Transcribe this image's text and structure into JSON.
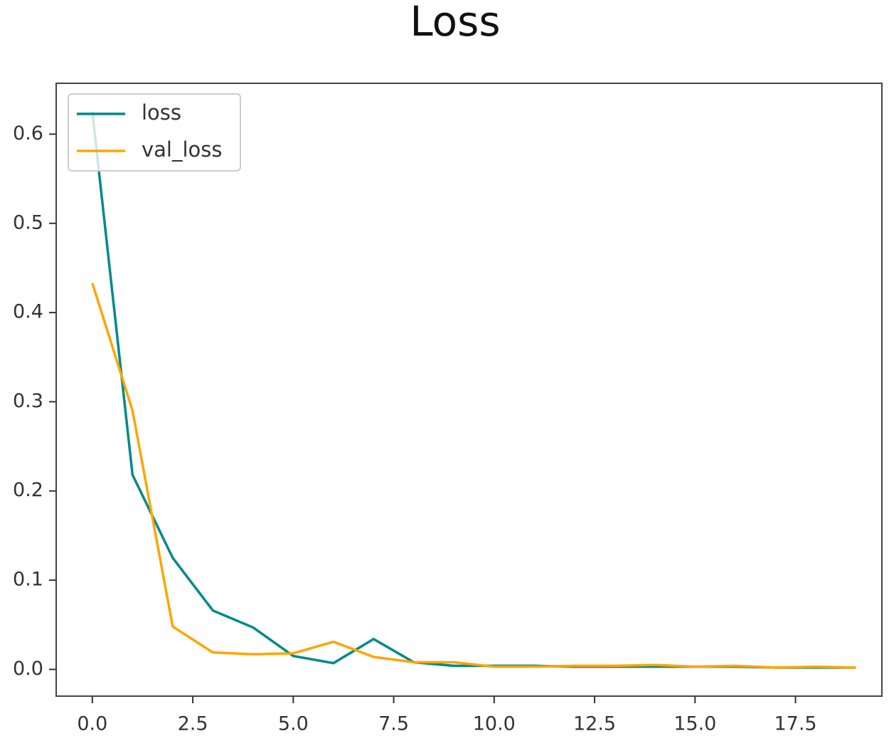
{
  "chart_data": {
    "type": "line",
    "title": "Loss",
    "x": [
      0,
      1,
      2,
      3,
      4,
      5,
      6,
      7,
      8,
      9,
      10,
      11,
      12,
      13,
      14,
      15,
      16,
      17,
      18,
      19
    ],
    "series": [
      {
        "name": "loss",
        "color": "#00898a",
        "values": [
          0.625,
          0.218,
          0.125,
          0.066,
          0.047,
          0.015,
          0.007,
          0.034,
          0.008,
          0.004,
          0.004,
          0.004,
          0.003,
          0.003,
          0.003,
          0.003,
          0.003,
          0.002,
          0.002,
          0.002
        ]
      },
      {
        "name": "val_loss",
        "color": "#ffa500",
        "values": [
          0.433,
          0.29,
          0.048,
          0.019,
          0.017,
          0.018,
          0.031,
          0.014,
          0.008,
          0.008,
          0.003,
          0.003,
          0.004,
          0.004,
          0.005,
          0.003,
          0.004,
          0.002,
          0.003,
          0.002
        ]
      }
    ],
    "xlim": [
      -0.9,
      19.65
    ],
    "ylim": [
      -0.03,
      0.657
    ],
    "xticks": [
      {
        "value": 0,
        "label": "0.0"
      },
      2.5,
      {
        "value": 5,
        "label": "5.0"
      },
      7.5,
      {
        "value": 10,
        "label": "10.0"
      },
      12.5,
      {
        "value": 15,
        "label": "15.0"
      },
      17.5
    ],
    "yticks": [
      {
        "value": 0,
        "label": "0.0"
      },
      0.1,
      0.2,
      0.3,
      0.4,
      0.5,
      0.6
    ],
    "legend": "upper left"
  }
}
